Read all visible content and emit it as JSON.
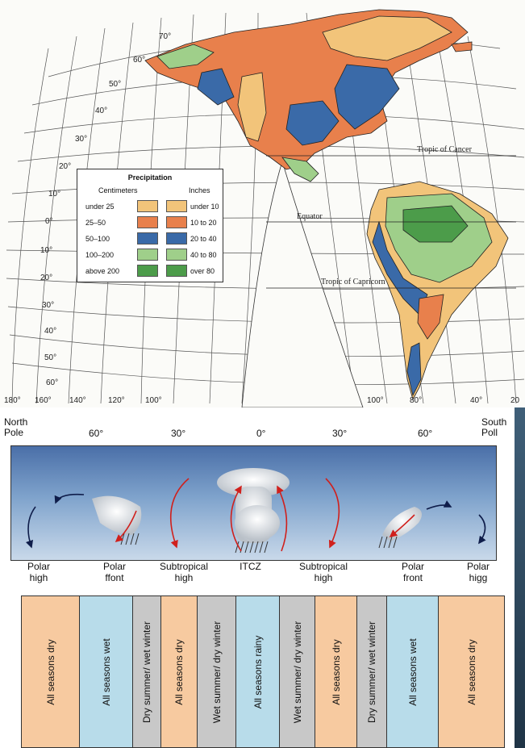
{
  "map": {
    "latitude_labels": [
      "70°",
      "60°",
      "50°",
      "40°",
      "30°",
      "20°",
      "10°",
      "0°",
      "10°",
      "20°",
      "30°",
      "40°",
      "50°",
      "60°"
    ],
    "longitude_labels": [
      "180°",
      "160°",
      "140°",
      "120°",
      "100°",
      "100°",
      "80°",
      "40°",
      "20"
    ],
    "reference_lines": [
      "Tropic of Cancer",
      "Equator",
      "Tropic of Capricorn"
    ],
    "legend": {
      "title": "Precipitation",
      "col_cm": "Centimeters",
      "col_in": "Inches",
      "rows": [
        {
          "cm": "under 25",
          "in": "under 10",
          "color": "#f2c47a"
        },
        {
          "cm": "25–50",
          "in": "10 to 20",
          "color": "#e8804c"
        },
        {
          "cm": "50–100",
          "in": "20 to 40",
          "color": "#3a6aa8"
        },
        {
          "cm": "100–200",
          "in": "40 to 80",
          "color": "#9fcf8a"
        },
        {
          "cm": "above 200",
          "in": "over 80",
          "color": "#4c9c4a"
        }
      ]
    }
  },
  "section": {
    "top_labels": {
      "north": "North\nPole",
      "south": "South\nPoll",
      "ticks": [
        "60°",
        "30°",
        "0°",
        "30°",
        "60°"
      ]
    },
    "pressure_labels": [
      "Polar\nhigh",
      "Polar\nffont",
      "Subtropical\nhigh",
      "ITCZ",
      "Subtropical\nhigh",
      "Polar\nfront",
      "Polar\nhigg"
    ],
    "zones": [
      {
        "label": "All seasons dry",
        "color": "#f7caa0"
      },
      {
        "label": "All seasons wet",
        "color": "#b8dcea"
      },
      {
        "label": "Dry summer/ wet winter",
        "color": "#c8c8c8"
      },
      {
        "label": "All seasons dry",
        "color": "#f7caa0"
      },
      {
        "label": "Wet summer/ dry winter",
        "color": "#c8c8c8"
      },
      {
        "label": "All seasons rainy",
        "color": "#b8dcea"
      },
      {
        "label": "Wet summer/ dry winter",
        "color": "#c8c8c8"
      },
      {
        "label": "All seasons dry",
        "color": "#f7caa0"
      },
      {
        "label": "Dry summer/ wet winter",
        "color": "#c8c8c8"
      },
      {
        "label": "All seasons wet",
        "color": "#b8dcea"
      },
      {
        "label": "All seasons dry",
        "color": "#f7caa0"
      }
    ]
  }
}
